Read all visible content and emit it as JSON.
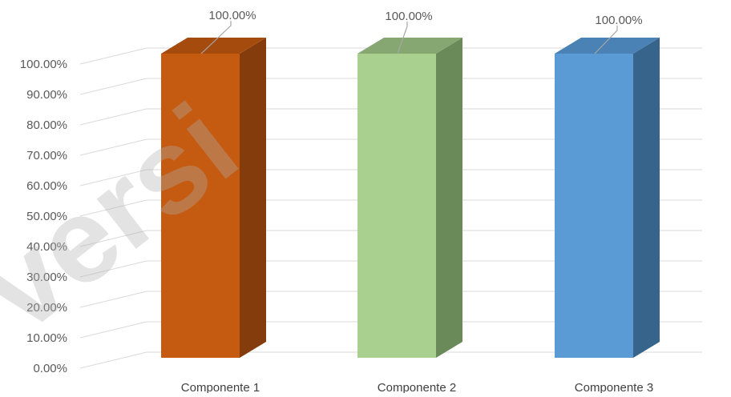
{
  "chart_data": {
    "type": "bar",
    "three_d": true,
    "categories": [
      "Componente 1",
      "Componente 2",
      "Componente 3"
    ],
    "values": [
      100,
      100,
      100
    ],
    "value_labels": [
      "100.00%",
      "100.00%",
      "100.00%"
    ],
    "ylim": [
      0,
      100
    ],
    "yticks": [
      0,
      10,
      20,
      30,
      40,
      50,
      60,
      70,
      80,
      90,
      100
    ],
    "ytick_labels": [
      "0.00%",
      "10.00%",
      "20.00%",
      "30.00%",
      "40.00%",
      "50.00%",
      "60.00%",
      "70.00%",
      "80.00%",
      "90.00%",
      "100.00%"
    ],
    "bar_colors": [
      {
        "front": "#c55a11",
        "side": "#843c0c",
        "top": "#a64b0e"
      },
      {
        "front": "#a9d08e",
        "side": "#6a8a5a",
        "top": "#87a772"
      },
      {
        "front": "#5b9bd5",
        "side": "#36648b",
        "top": "#4a82b6"
      }
    ],
    "grid": true,
    "legend": "none",
    "title": "",
    "xlabel": "",
    "ylabel": ""
  },
  "watermark": {
    "text": "versi"
  }
}
